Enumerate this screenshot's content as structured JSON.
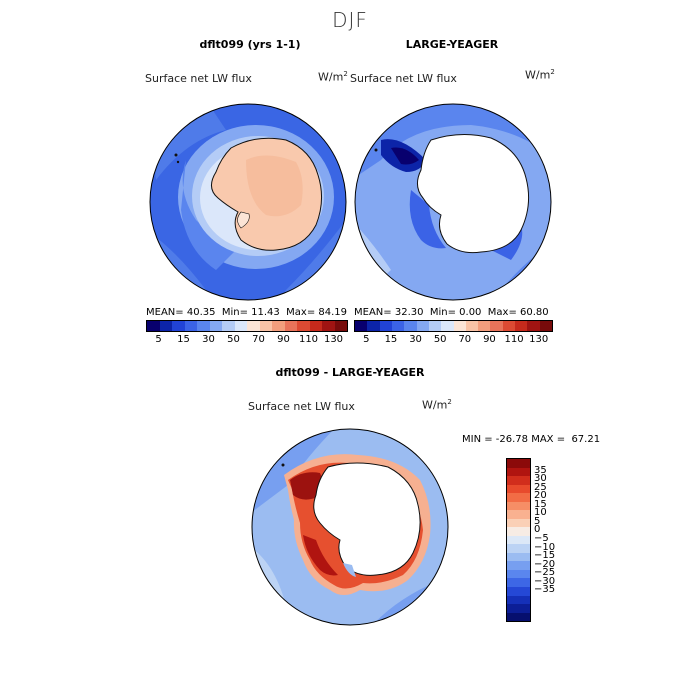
{
  "season": "DJF",
  "panel1": {
    "title": "dflt099 (yrs 1-1)",
    "variable": "Surface net LW flux",
    "units_base": "W/m",
    "units_exp": "2",
    "mean_label": "MEAN=",
    "mean": "40.35",
    "min_label": "Min=",
    "min": "11.43",
    "max_label": "Max=",
    "max": "84.19"
  },
  "panel2": {
    "title": "LARGE-YEAGER",
    "variable": "Surface net LW flux",
    "units_base": "W/m",
    "units_exp": "2",
    "mean_label": "MEAN=",
    "mean": "32.30",
    "min_label": "Min=",
    "min": "0.00",
    "max_label": "Max=",
    "max": "60.80"
  },
  "panel3": {
    "title": "dflt099 - LARGE-YEAGER",
    "variable": "Surface net LW flux",
    "units_base": "W/m",
    "units_exp": "2",
    "stats_text": "MIN = -26.78 MAX =  67.21"
  },
  "chart_data": [
    {
      "type": "heatmap",
      "title": "dflt099 (yrs 1-1)",
      "subtitle": "Surface net LW flux",
      "units": "W/m2",
      "projection": "south polar stereographic",
      "stats": {
        "mean": 40.35,
        "min": 11.43,
        "max": 84.19
      },
      "colorbar_ticks": [
        "5",
        "15",
        "30",
        "50",
        "70",
        "90",
        "110",
        "130"
      ],
      "colorbar_colors": [
        "#08006e",
        "#0c24a8",
        "#2143d6",
        "#3b63e6",
        "#5a85ee",
        "#84a8f2",
        "#b4ccf6",
        "#dbe7fa",
        "#fbe4d6",
        "#f9c3a6",
        "#f29e7d",
        "#e8735a",
        "#dc4a33",
        "#c62a1c",
        "#a01412",
        "#780b0b"
      ]
    },
    {
      "type": "heatmap",
      "title": "LARGE-YEAGER",
      "subtitle": "Surface net LW flux",
      "units": "W/m2",
      "projection": "south polar stereographic",
      "stats": {
        "mean": 32.3,
        "min": 0.0,
        "max": 60.8
      },
      "colorbar_ticks": [
        "5",
        "15",
        "30",
        "50",
        "70",
        "90",
        "110",
        "130"
      ],
      "colorbar_colors": [
        "#08006e",
        "#0c24a8",
        "#2143d6",
        "#3b63e6",
        "#5a85ee",
        "#84a8f2",
        "#b4ccf6",
        "#dbe7fa",
        "#fbe4d6",
        "#f9c3a6",
        "#f29e7d",
        "#e8735a",
        "#dc4a33",
        "#c62a1c",
        "#a01412",
        "#780b0b"
      ]
    },
    {
      "type": "heatmap",
      "title": "dflt099 - LARGE-YEAGER",
      "subtitle": "Surface net LW flux",
      "units": "W/m2",
      "projection": "south polar stereographic",
      "stats": {
        "min": -26.78,
        "max": 67.21
      },
      "colorbar_ticks": [
        "35",
        "30",
        "25",
        "20",
        "15",
        "10",
        "5",
        "0",
        "−5",
        "−10",
        "−15",
        "−20",
        "−25",
        "−30",
        "−35"
      ],
      "colorbar_colors": [
        "#8b0a0a",
        "#b01410",
        "#d12d1c",
        "#e84a2c",
        "#f26c45",
        "#f68e66",
        "#f9b190",
        "#fad0b6",
        "#f7ece4",
        "#dce8f7",
        "#bcd3f4",
        "#9bbcf1",
        "#779ff0",
        "#5a86ee",
        "#3d67e6",
        "#2548d6",
        "#1530b8",
        "#0c1e96",
        "#060f6e"
      ]
    }
  ]
}
